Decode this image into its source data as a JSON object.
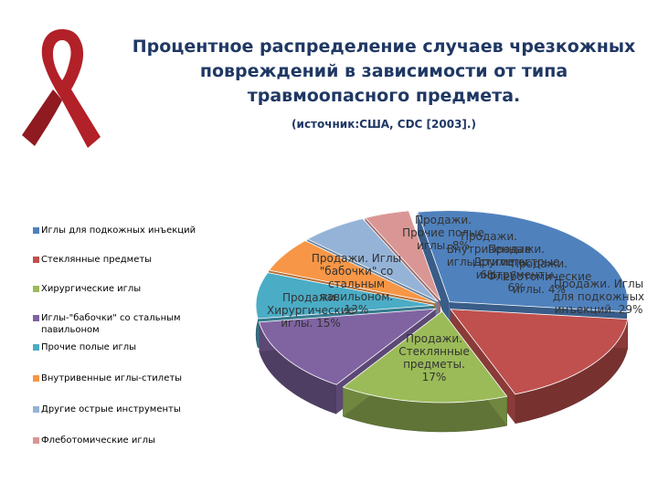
{
  "title": "Процентное распределение случаев чрезкожных повреждений в зависимости от типа травмоопасного предмета.",
  "source": "(источник:США, CDC [2003].)",
  "chart_data": {
    "type": "pie",
    "title": "Процентное распределение случаев чрезкожных повреждений в зависимости от типа травмоопасного предмета.",
    "legend_position": "left",
    "categories": [
      "Иглы для подкожных инъекций",
      "Стеклянные предметы",
      "Хирургические иглы",
      "Иглы-\"бабочки\" со стальным павильоном",
      "Прочие полые иглы",
      "Внутривенные иглы-стилеты",
      "Другие острые инструменты",
      "Флеботомические иглы"
    ],
    "values": [
      29,
      17,
      15,
      13,
      8,
      6,
      6,
      4
    ],
    "colors": [
      "#4f81bd",
      "#c0504d",
      "#9bbb59",
      "#8064a2",
      "#4bacc6",
      "#f79646",
      "#95b3d7",
      "#d99694"
    ],
    "data_labels": [
      "Продажи. Иглы для подкожных инъекций. 29%",
      "Продажи. Стеклянные предметы. 17%",
      "Продажи. Хирургические иглы. 15%",
      "Продажи. Иглы \"бабочки\" со стальным павильоном. 13%",
      "Продажи. Прочие полые иглы. 8%",
      "Продажи. Внутривенные иглы-стилеты. 6%",
      "Продажи. Другие острые инструменты. 6%",
      "Продажи. Флеботомические иглы. 4%"
    ]
  }
}
